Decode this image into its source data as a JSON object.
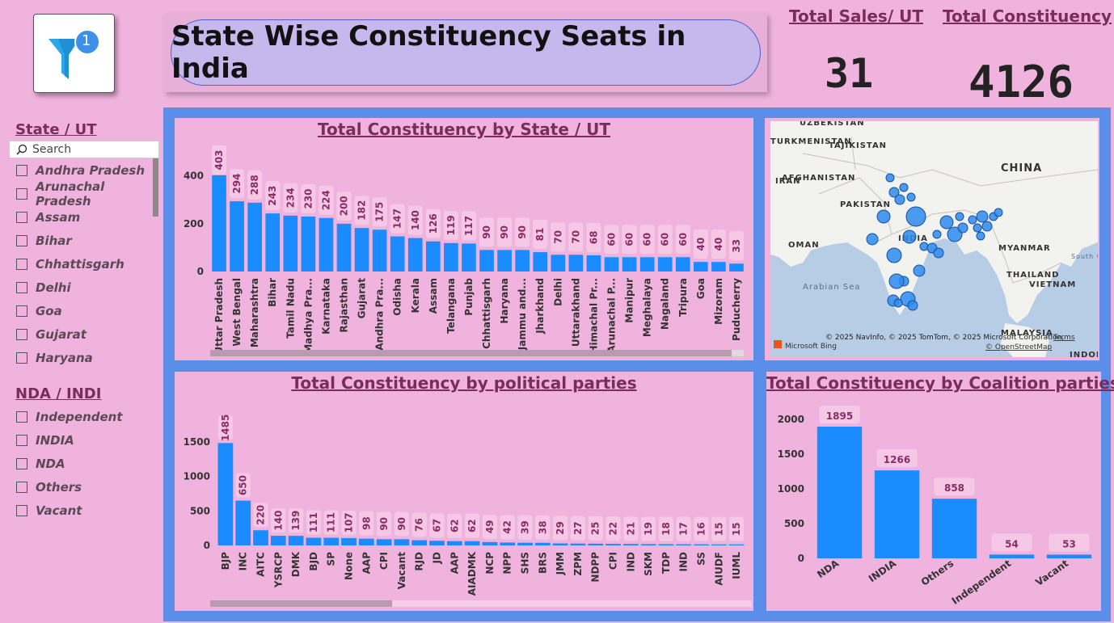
{
  "header": {
    "title": "State Wise Constituency Seats in India",
    "logo_badge": "1",
    "kpis": [
      {
        "label": "Total Sales/ UT",
        "value": "31"
      },
      {
        "label": "Total Constituency",
        "value": "4126"
      }
    ]
  },
  "slicers": {
    "state": {
      "title": "State / UT",
      "search_placeholder": "Search",
      "items": [
        "Andhra Pradesh",
        "Arunachal Pradesh",
        "Assam",
        "Bihar",
        "Chhattisgarh",
        "Delhi",
        "Goa",
        "Gujarat",
        "Haryana"
      ]
    },
    "alliance": {
      "title": "NDA / INDI",
      "items": [
        "Independent",
        "INDIA",
        "NDA",
        "Others",
        "Vacant"
      ]
    }
  },
  "map": {
    "labels": [
      "UZBEKISTAN",
      "TURKMENISTAN",
      "TAJIKISTAN",
      "IRAN",
      "AFGHANISTAN",
      "PAKISTAN",
      "CHINA",
      "INDIA",
      "OMAN",
      "MYANMAR",
      "THAILAND",
      "VIETNAM",
      "Arabian Sea",
      "MALAYSIA",
      "South China Sea",
      "INDONESIA"
    ],
    "attribution": "© 2025 NavInfo, © 2025 TomTom, © 2025 Microsoft Corporation,",
    "terms": "Terms",
    "osm": "© OpenStreetMap",
    "bing": "Microsoft Bing",
    "colors": {
      "land": "#f2f2ef",
      "water": "#b7cde6",
      "bubble": "#2d8cf0"
    }
  },
  "colors": {
    "bar": "#1a8cff",
    "label_bg": "#f5c8e6",
    "label_text": "#8a2c66",
    "frame": "#5b8ee8",
    "bg": "#f0b3de"
  },
  "chart_data": [
    {
      "type": "bar",
      "title": "Total Constituency by State / UT",
      "categories": [
        "Uttar Pradesh",
        "West Bengal",
        "Maharashtra",
        "Bihar",
        "Tamil Nadu",
        "Madhya Pra...",
        "Karnataka",
        "Rajasthan",
        "Gujarat",
        "Andhra Pra...",
        "Odisha",
        "Kerala",
        "Assam",
        "Telangana",
        "Punjab",
        "Chhattisgarh",
        "Haryana",
        "Jammu and...",
        "Jharkhand",
        "Delhi",
        "Uttarakhand",
        "Himachal Pr...",
        "Arunachal P...",
        "Manipur",
        "Meghalaya",
        "Nagaland",
        "Tripura",
        "Goa",
        "Mizoram",
        "Puducherry"
      ],
      "values": [
        403,
        294,
        288,
        243,
        234,
        230,
        224,
        200,
        182,
        175,
        147,
        140,
        126,
        119,
        117,
        90,
        90,
        90,
        81,
        70,
        70,
        68,
        60,
        60,
        60,
        60,
        60,
        40,
        40,
        33
      ],
      "yticks": [
        0,
        200,
        400
      ],
      "ylim": [
        0,
        460
      ]
    },
    {
      "type": "bar",
      "title": "Total Constituency by political parties",
      "categories": [
        "BJP",
        "INC",
        "AITC",
        "YSRCP",
        "DMK",
        "BJD",
        "SP",
        "None",
        "AAP",
        "CPI",
        "Vacant",
        "RJD",
        "JD",
        "AAP",
        "AIADMK",
        "NCP",
        "NPP",
        "SHS",
        "BRS",
        "JMM",
        "ZPM",
        "NDPP",
        "CPI",
        "IND",
        "SKM",
        "TDP",
        "IND",
        "SS",
        "AIUDF",
        "IUML"
      ],
      "values": [
        1485,
        650,
        220,
        140,
        139,
        111,
        111,
        107,
        98,
        90,
        90,
        76,
        67,
        62,
        62,
        49,
        42,
        39,
        38,
        29,
        27,
        25,
        22,
        21,
        19,
        18,
        17,
        16,
        15,
        15
      ],
      "yticks": [
        0,
        500,
        1000,
        1500
      ],
      "ylim": [
        0,
        1700
      ]
    },
    {
      "type": "bar",
      "title": "Total Constituency by Coalition parties",
      "categories": [
        "NDA",
        "INDIA",
        "Others",
        "Independent",
        "Vacant"
      ],
      "values": [
        1895,
        1266,
        858,
        54,
        53
      ],
      "yticks": [
        0,
        500,
        1000,
        1500,
        2000
      ],
      "ylim": [
        0,
        2000
      ]
    }
  ]
}
